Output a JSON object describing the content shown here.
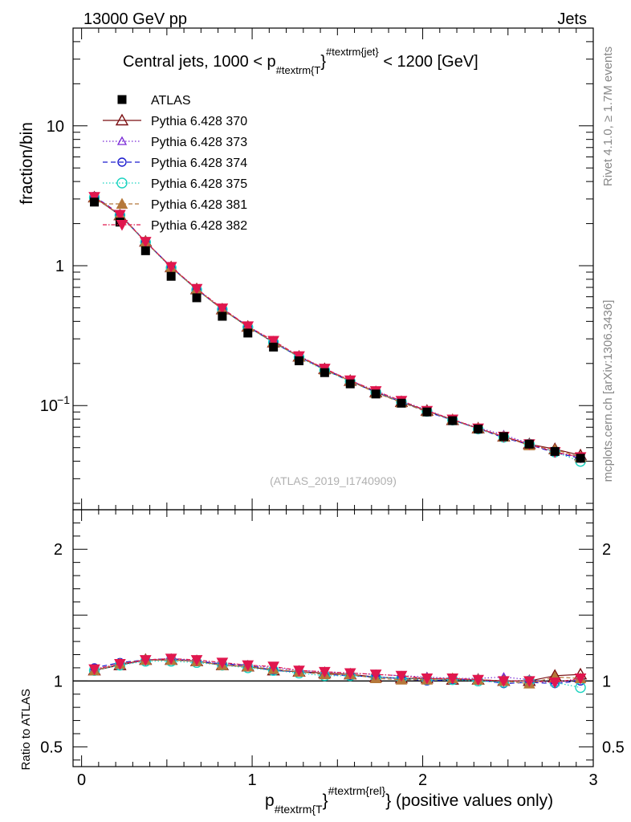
{
  "header": {
    "left": "13000 GeV pp",
    "right": "Jets"
  },
  "side": {
    "rivet": "Rivet 4.1.0, ≥ 1.7M events",
    "mcplots": "mcplots.cern.ch [arXiv:1306.3436]"
  },
  "watermark": "(ATLAS_2019_I1740909)",
  "title": {
    "prefix": "Central jets, 1000 < p",
    "sub": "#textrm{T",
    "sup": "#textrm{jet}",
    "close": "}",
    "suffix": " < 1200 [GeV]"
  },
  "xlabel": {
    "main": "p",
    "sub": "#textrm{T",
    "close": "}",
    "sup": "#textrm{rel}",
    "rest": "} (positive values only)"
  },
  "ylabel_top": "fraction/bin",
  "ylabel_bottom": "Ratio to ATLAS",
  "chart_data": {
    "type": "scatter",
    "x": [
      0.075,
      0.225,
      0.375,
      0.525,
      0.675,
      0.825,
      0.975,
      1.125,
      1.275,
      1.425,
      1.575,
      1.725,
      1.875,
      2.025,
      2.175,
      2.325,
      2.475,
      2.625,
      2.775,
      2.925
    ],
    "xlim": [
      -0.05,
      3.0
    ],
    "xticks": [
      {
        "v": 0,
        "label": "0"
      },
      {
        "v": 1,
        "label": "1"
      },
      {
        "v": 2,
        "label": "2"
      },
      {
        "v": 3,
        "label": "3"
      }
    ],
    "ylim_top": [
      0.018,
      50
    ],
    "yscale_top": "log",
    "yticks_top": [
      {
        "v": 0.1,
        "label": "10",
        "sup": "−1"
      },
      {
        "v": 1,
        "label": "1",
        "sup": ""
      },
      {
        "v": 10,
        "label": "10",
        "sup": ""
      }
    ],
    "ylim_bottom": [
      0.35,
      2.3
    ],
    "yticks_bottom": [
      {
        "v": 0.5,
        "label": "0.5"
      },
      {
        "v": 1,
        "label": "1"
      },
      {
        "v": 2,
        "label": "2"
      }
    ],
    "data": {
      "name": "ATLAS",
      "color": "#000000",
      "values": [
        2.85,
        2.05,
        1.28,
        0.84,
        0.59,
        0.435,
        0.33,
        0.262,
        0.209,
        0.172,
        0.143,
        0.121,
        0.104,
        0.09,
        0.078,
        0.068,
        0.06,
        0.053,
        0.047,
        0.042
      ]
    },
    "series": [
      {
        "name": "Pythia 6.428 370",
        "color": "#7b0f12",
        "dash": "",
        "marker": "triangle-open",
        "ratio": [
          1.08,
          1.12,
          1.16,
          1.16,
          1.15,
          1.12,
          1.11,
          1.08,
          1.07,
          1.06,
          1.05,
          1.03,
          1.02,
          1.02,
          1.01,
          1.01,
          1.0,
          1.0,
          1.04,
          1.05
        ]
      },
      {
        "name": "Pythia 6.428 373",
        "color": "#7a2ad6",
        "dash": "1.5,2.5",
        "marker": "triangle-open-small",
        "ratio": [
          1.09,
          1.12,
          1.16,
          1.17,
          1.15,
          1.13,
          1.12,
          1.1,
          1.08,
          1.07,
          1.06,
          1.05,
          1.04,
          1.03,
          1.02,
          1.02,
          1.03,
          1.01,
          0.99,
          1.01
        ]
      },
      {
        "name": "Pythia 6.428 374",
        "color": "#1c1ccf",
        "dash": "6,4",
        "marker": "circle-open",
        "ratio": [
          1.1,
          1.14,
          1.16,
          1.17,
          1.15,
          1.13,
          1.12,
          1.08,
          1.07,
          1.05,
          1.04,
          1.03,
          1.02,
          1.0,
          1.01,
          1.01,
          0.98,
          0.99,
          0.98,
          1.0
        ]
      },
      {
        "name": "Pythia 6.428 375",
        "color": "#1ad3c0",
        "dash": "1.5,2.5",
        "marker": "circle-open-big",
        "ratio": [
          1.08,
          1.12,
          1.15,
          1.15,
          1.14,
          1.12,
          1.1,
          1.08,
          1.06,
          1.04,
          1.04,
          1.03,
          1.02,
          1.01,
          1.01,
          1.0,
          0.99,
          1.0,
          0.99,
          0.95
        ]
      },
      {
        "name": "Pythia 6.428 381",
        "color": "#b5783a",
        "dash": "5,3",
        "marker": "triangle-filled",
        "ratio": [
          1.08,
          1.13,
          1.16,
          1.16,
          1.15,
          1.12,
          1.11,
          1.09,
          1.07,
          1.05,
          1.05,
          1.02,
          1.01,
          1.01,
          1.02,
          1.01,
          1.0,
          0.98,
          1.03,
          1.02
        ]
      },
      {
        "name": "Pythia 6.428 382",
        "color": "#e0174e",
        "dash": "5,2,1.5,2",
        "marker": "triangle-down-filled",
        "ratio": [
          1.09,
          1.13,
          1.16,
          1.17,
          1.16,
          1.14,
          1.12,
          1.11,
          1.08,
          1.07,
          1.06,
          1.05,
          1.04,
          1.02,
          1.02,
          1.01,
          1.0,
          1.0,
          0.99,
          1.02
        ]
      }
    ]
  }
}
